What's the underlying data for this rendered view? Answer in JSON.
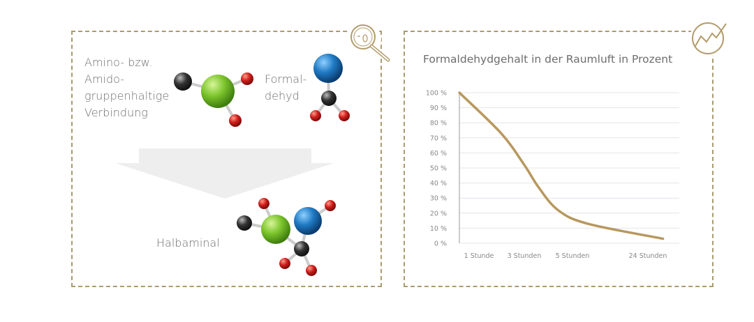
{
  "left_panel": {
    "reactant1_label": [
      "Amino- bzw.",
      "Amido-",
      "gruppenhaltige",
      "Verbindung"
    ],
    "reactant2_label": [
      "Formal-",
      "dehyd"
    ],
    "product_label": "Halbaminal",
    "icon": "magnifier-bacteria-icon"
  },
  "right_panel": {
    "icon": "trend-chart-icon"
  },
  "colors": {
    "border": "#a99c6e",
    "line": "#b8985e",
    "grid": "#e4e4ea",
    "atom_green": "#7cc52c",
    "atom_blue": "#1f7ac4",
    "atom_red": "#d0201c",
    "atom_black": "#333333",
    "arrow": "#eeeeee"
  },
  "chart_data": {
    "type": "line",
    "title": "Formaldehydgehalt in der Raumluft in Prozent",
    "xlabel": "",
    "ylabel": "",
    "categories": [
      "1 Stunde",
      "3 Stunden",
      "5 Stunden",
      "24 Stunden"
    ],
    "yticks": [
      "0 %",
      "10 %",
      "20 %",
      "30 %",
      "40 %",
      "50 %",
      "60 %",
      "70 %",
      "80 %",
      "90 %",
      "100 %"
    ],
    "ylim": [
      0,
      100
    ],
    "grid": true,
    "legend": "none",
    "series": [
      {
        "x": [
          -0.43,
          0.49,
          1.0,
          1.3,
          1.7,
          2.2,
          3.2
        ],
        "values": [
          100,
          73,
          52,
          37,
          22,
          13,
          3
        ]
      }
    ]
  }
}
